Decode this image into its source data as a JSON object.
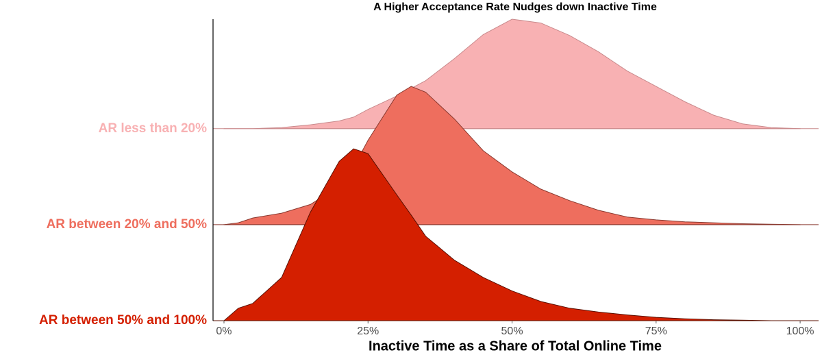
{
  "chart_data": {
    "type": "ridgeline",
    "title": "A Higher Acceptance Rate Nudges down Inactive Time",
    "x_label": "Inactive Time as a Share of Total Online Time",
    "categories": [
      "AR between 50% and 100%",
      "AR between 20% and 50%",
      "AR less than 20%"
    ],
    "x": [
      0,
      2.5,
      5,
      10,
      15,
      20,
      22.5,
      25,
      30,
      32.5,
      35,
      40,
      45,
      50,
      55,
      60,
      65,
      70,
      75,
      80,
      85,
      90,
      95,
      100
    ],
    "series": [
      {
        "color": "#d41f00",
        "line_color": "#5a1000",
        "values": [
          0,
          0.13,
          0.18,
          0.45,
          1.13,
          1.66,
          1.79,
          1.74,
          1.31,
          1.1,
          0.88,
          0.63,
          0.45,
          0.31,
          0.2,
          0.13,
          0.09,
          0.06,
          0.035,
          0.02,
          0.01,
          0.005,
          0,
          0
        ]
      },
      {
        "color": "#ee6e5e",
        "line_color": "#8a3a30",
        "values": [
          0,
          0.02,
          0.07,
          0.12,
          0.21,
          0.4,
          0.6,
          0.88,
          1.35,
          1.44,
          1.38,
          1.1,
          0.77,
          0.55,
          0.37,
          0.25,
          0.15,
          0.08,
          0.05,
          0.03,
          0.02,
          0.01,
          0.005,
          0
        ]
      },
      {
        "color": "#f8b1b3",
        "line_color": "#c98a8c",
        "values": [
          0,
          0,
          0,
          0.01,
          0.04,
          0.08,
          0.12,
          0.2,
          0.34,
          0.42,
          0.5,
          0.73,
          0.98,
          1.14,
          1.1,
          0.97,
          0.8,
          0.6,
          0.44,
          0.28,
          0.14,
          0.05,
          0.01,
          0
        ]
      }
    ],
    "xlim": [
      -1.9,
      103.2
    ],
    "xticks": [
      {
        "value": 0,
        "label": "0%"
      },
      {
        "value": 25,
        "label": "25%"
      },
      {
        "value": 50,
        "label": "50%"
      },
      {
        "value": 75,
        "label": "75%"
      },
      {
        "value": 100,
        "label": "100%"
      }
    ],
    "ylim": [
      0,
      3.14
    ]
  }
}
